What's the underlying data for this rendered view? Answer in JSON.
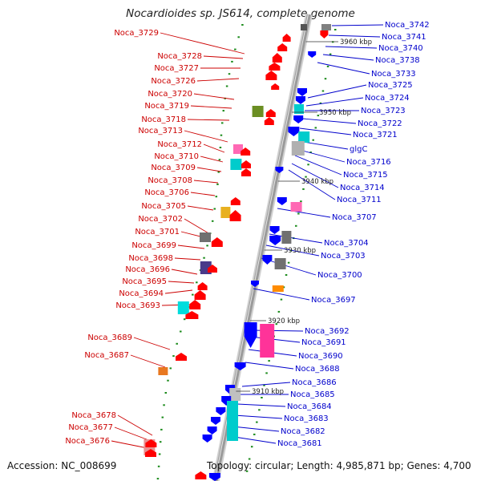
{
  "title": "Nocardioides sp. JS614, complete genome",
  "footer": {
    "accession": "Accession: NC_008699",
    "info": "Topology: circular; Length: 4,985,871 bp; Genes: 4,700"
  },
  "colors": {
    "left_labels": "#cc0000",
    "right_labels": "#0000cc",
    "forward_genes": "#ff0000",
    "reverse_genes": "#0000ff",
    "backbone": "#9a9a9a",
    "dots": "#1a8a1a"
  },
  "kbp_ticks": [
    "3960 kbp",
    "3950 kbp",
    "3940 kbp",
    "3930 kbp",
    "3920 kbp",
    "3910 kbp"
  ],
  "left_genes": [
    "Noca_3729",
    "Noca_3728",
    "Noca_3727",
    "Noca_3726",
    "Noca_3720",
    "Noca_3719",
    "Noca_3718",
    "Noca_3713",
    "Noca_3712",
    "Noca_3710",
    "Noca_3709",
    "Noca_3708",
    "Noca_3706",
    "Noca_3705",
    "Noca_3702",
    "Noca_3701",
    "Noca_3699",
    "Noca_3698",
    "Noca_3696",
    "Noca_3695",
    "Noca_3694",
    "Noca_3693",
    "Noca_3689",
    "Noca_3687",
    "Noca_3678",
    "Noca_3677",
    "Noca_3676"
  ],
  "right_genes": [
    "Noca_3742",
    "Noca_3741",
    "Noca_3740",
    "Noca_3738",
    "Noca_3733",
    "Noca_3725",
    "Noca_3724",
    "Noca_3723",
    "Noca_3722",
    "Noca_3721",
    "glgC",
    "Noca_3716",
    "Noca_3715",
    "Noca_3714",
    "Noca_3711",
    "Noca_3707",
    "Noca_3704",
    "Noca_3703",
    "Noca_3700",
    "Noca_3697",
    "Noca_3692",
    "Noca_3691",
    "Noca_3690",
    "Noca_3688",
    "Noca_3686",
    "Noca_3685",
    "Noca_3684",
    "Noca_3683",
    "Noca_3682",
    "Noca_3681"
  ]
}
